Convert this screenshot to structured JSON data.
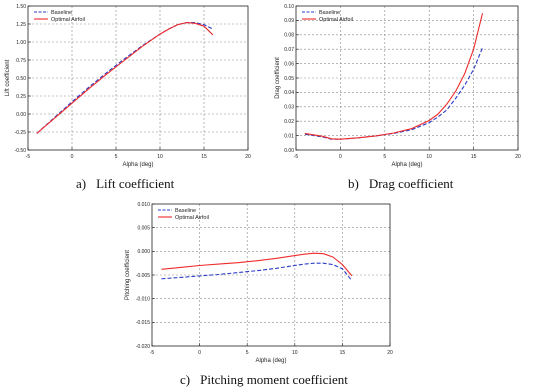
{
  "captions": [
    {
      "label": "a)",
      "text": "Lift coefficient"
    },
    {
      "label": "b)",
      "text": "Drag coefficient"
    },
    {
      "label": "c)",
      "text": "Pitching moment coefficient"
    }
  ],
  "colors": {
    "baseline": "#2b3cc7",
    "optimal": "#ef2b2b"
  },
  "chart_data": [
    {
      "type": "line",
      "title": "",
      "xlabel": "Alpha (deg)",
      "ylabel": "Lift coefficient",
      "xlim": [
        -5,
        20
      ],
      "ylim": [
        -0.5,
        1.5
      ],
      "xticks": [
        -5,
        0,
        5,
        10,
        15,
        20
      ],
      "xtick_labels": [
        "-5",
        "0",
        "5",
        "10",
        "15",
        "20"
      ],
      "yticks": [
        -0.5,
        -0.25,
        0,
        0.25,
        0.5,
        0.75,
        1.0,
        1.25,
        1.5
      ],
      "ytick_labels": [
        "-0.50",
        "-0.25",
        "0.00",
        "0.25",
        "0.50",
        "0.75",
        "1.00",
        "1.25",
        "1.50"
      ],
      "grid": true,
      "legend_position": "top-left",
      "series": [
        {
          "name": "Baseline",
          "style": "dashed",
          "color": "#2b3cc7",
          "x": [
            -4,
            -2,
            0,
            2,
            4,
            6,
            8,
            10,
            11,
            12,
            13,
            14,
            15,
            16
          ],
          "y": [
            -0.27,
            -0.05,
            0.17,
            0.38,
            0.58,
            0.77,
            0.95,
            1.11,
            1.18,
            1.24,
            1.27,
            1.27,
            1.24,
            1.18
          ]
        },
        {
          "name": "Optimal Airfoil",
          "style": "solid",
          "color": "#ef2b2b",
          "x": [
            -4,
            -2,
            0,
            2,
            4,
            6,
            8,
            10,
            11,
            12,
            13,
            14,
            15,
            16
          ],
          "y": [
            -0.27,
            -0.06,
            0.15,
            0.36,
            0.56,
            0.75,
            0.94,
            1.11,
            1.18,
            1.24,
            1.27,
            1.26,
            1.22,
            1.1
          ]
        }
      ]
    },
    {
      "type": "line",
      "title": "",
      "xlabel": "Alpha (deg)",
      "ylabel": "Drag coefficient",
      "xlim": [
        -5,
        20
      ],
      "ylim": [
        0,
        0.1
      ],
      "xticks": [
        -5,
        0,
        5,
        10,
        15,
        20
      ],
      "xtick_labels": [
        "-5",
        "0",
        "5",
        "10",
        "15",
        "20"
      ],
      "yticks": [
        0,
        0.01,
        0.02,
        0.03,
        0.04,
        0.05,
        0.06,
        0.07,
        0.08,
        0.09,
        0.1
      ],
      "ytick_labels": [
        "0.00",
        "0.01",
        "0.02",
        "0.03",
        "0.04",
        "0.05",
        "0.06",
        "0.07",
        "0.08",
        "0.09",
        "0.10"
      ],
      "grid": true,
      "legend_position": "top-left",
      "series": [
        {
          "name": "Baseline",
          "style": "dashed",
          "color": "#2b3cc7",
          "x": [
            -4,
            -2,
            -1,
            0,
            2,
            4,
            6,
            8,
            10,
            11,
            12,
            13,
            14,
            15,
            16
          ],
          "y": [
            0.011,
            0.009,
            0.0075,
            0.0075,
            0.0085,
            0.0098,
            0.0115,
            0.014,
            0.019,
            0.023,
            0.028,
            0.036,
            0.045,
            0.056,
            0.071
          ]
        },
        {
          "name": "Optimal Airfoil",
          "style": "solid",
          "color": "#ef2b2b",
          "x": [
            -4,
            -2,
            -1,
            0,
            2,
            4,
            6,
            8,
            10,
            11,
            12,
            13,
            14,
            15,
            16
          ],
          "y": [
            0.0115,
            0.0095,
            0.0078,
            0.0075,
            0.0085,
            0.0098,
            0.0118,
            0.0148,
            0.0205,
            0.025,
            0.032,
            0.041,
            0.053,
            0.07,
            0.095
          ]
        }
      ]
    },
    {
      "type": "line",
      "title": "",
      "xlabel": "Alpha (deg)",
      "ylabel": "Pitching coefficient",
      "xlim": [
        -5,
        20
      ],
      "ylim": [
        -0.02,
        0.01
      ],
      "xticks": [
        -5,
        0,
        5,
        10,
        15,
        20
      ],
      "xtick_labels": [
        "-5",
        "0",
        "5",
        "10",
        "15",
        "20"
      ],
      "yticks": [
        -0.02,
        -0.015,
        -0.01,
        -0.005,
        0,
        0.005,
        0.01
      ],
      "ytick_labels": [
        "-0.020",
        "-0.015",
        "-0.010",
        "-0.005",
        "0.000",
        "0.005",
        "0.010"
      ],
      "grid": true,
      "legend_position": "top-left",
      "series": [
        {
          "name": "Baseline",
          "style": "dashed",
          "color": "#2b3cc7",
          "x": [
            -4,
            -2,
            0,
            2,
            4,
            6,
            8,
            10,
            11,
            12,
            13,
            14,
            15,
            16
          ],
          "y": [
            -0.0058,
            -0.0055,
            -0.0052,
            -0.0049,
            -0.0045,
            -0.0041,
            -0.0036,
            -0.003,
            -0.0027,
            -0.0025,
            -0.0025,
            -0.0028,
            -0.0037,
            -0.0062
          ]
        },
        {
          "name": "Optimal Airfoil",
          "style": "solid",
          "color": "#ef2b2b",
          "x": [
            -4,
            -2,
            0,
            2,
            4,
            6,
            8,
            10,
            11,
            12,
            13,
            14,
            15,
            16
          ],
          "y": [
            -0.0038,
            -0.0034,
            -0.003,
            -0.0027,
            -0.0024,
            -0.002,
            -0.0015,
            -0.0009,
            -0.0006,
            -0.0004,
            -0.0005,
            -0.0012,
            -0.0028,
            -0.0052
          ]
        }
      ]
    }
  ]
}
